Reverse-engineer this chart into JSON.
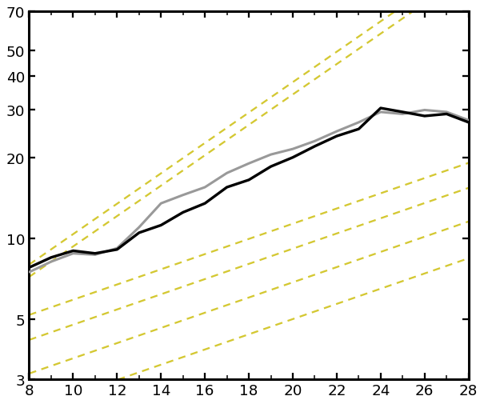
{
  "x": [
    8,
    9,
    10,
    11,
    12,
    13,
    14,
    15,
    16,
    17,
    18,
    19,
    20,
    21,
    22,
    23,
    24,
    25,
    26,
    27,
    28
  ],
  "black_line": [
    7.8,
    8.5,
    9.0,
    8.8,
    9.1,
    10.5,
    11.2,
    12.5,
    13.5,
    15.5,
    16.5,
    18.5,
    20.0,
    22.0,
    24.0,
    25.5,
    30.5,
    29.5,
    28.5,
    29.0,
    27.0
  ],
  "grey_line": [
    7.5,
    8.2,
    8.8,
    8.7,
    9.2,
    11.0,
    13.5,
    14.5,
    15.5,
    17.5,
    19.0,
    20.5,
    21.5,
    23.0,
    25.0,
    27.0,
    29.5,
    29.0,
    30.0,
    29.5,
    27.5
  ],
  "ylim": [
    3,
    70
  ],
  "xlim": [
    8,
    28
  ],
  "yticks": [
    3,
    5,
    10,
    20,
    30,
    40,
    50,
    70
  ],
  "xticks": [
    8,
    10,
    12,
    14,
    16,
    18,
    20,
    22,
    24,
    26,
    28
  ],
  "background_color": "#ffffff",
  "black_color": "#000000",
  "grey_color": "#999999",
  "yellow_color": "#d4c832",
  "cc_rate": 0.065,
  "cc2_rate": 0.13,
  "cc_anchors_y8": [
    8.0,
    7.2,
    5.2,
    4.2,
    3.15,
    2.3
  ],
  "cc_rates_per_line": [
    0.13,
    0.13,
    0.065,
    0.065,
    0.065,
    0.065
  ]
}
